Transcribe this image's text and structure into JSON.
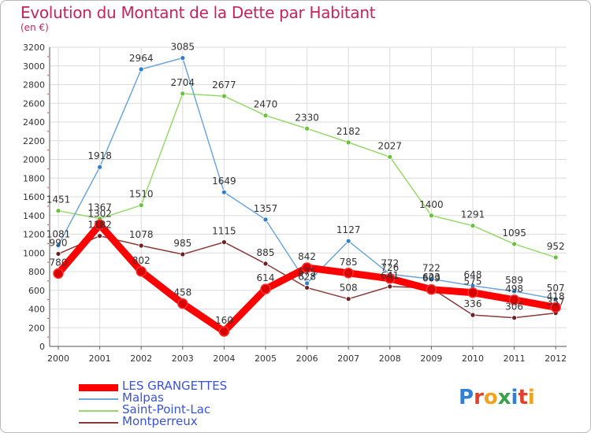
{
  "title": "Evolution du Montant de la Dette par Habitant",
  "subtitle": "(en €)",
  "logo": {
    "text": "Proxiti",
    "letters": [
      {
        "ch": "P",
        "color": "#2f7fd6"
      },
      {
        "ch": "r",
        "color": "#e2402c"
      },
      {
        "ch": "o",
        "color": "#f0a31c"
      },
      {
        "ch": "x",
        "color": "#3aa14a"
      },
      {
        "ch": "i",
        "color": "#2f7fd6"
      },
      {
        "ch": "t",
        "color": "#e2402c"
      },
      {
        "ch": "i",
        "color": "#f0a31c"
      }
    ]
  },
  "chart_data": {
    "type": "line",
    "title": "Evolution du Montant de la Dette par Habitant",
    "ylabel": "(en €)",
    "x": [
      "2000",
      "2001",
      "2002",
      "2003",
      "2004",
      "2005",
      "2006",
      "2007",
      "2008",
      "2009",
      "2010",
      "2011",
      "2012"
    ],
    "ylim": [
      0,
      3200
    ],
    "yticks": [
      0,
      200,
      400,
      600,
      800,
      1000,
      1200,
      1400,
      1600,
      1800,
      2000,
      2200,
      2400,
      2600,
      2800,
      3000,
      3200
    ],
    "grid": true,
    "legend_position": "bottom-left",
    "series": [
      {
        "name": "LES GRANGETTES",
        "color": "#ff0000",
        "point_color": "#d90000",
        "values": [
          780,
          1302,
          802,
          458,
          160,
          614,
          842,
          785,
          726,
          609,
          575,
          498,
          418
        ]
      },
      {
        "name": "Malpas",
        "color": "#6fa6d8",
        "point_color": "#2f80c8",
        "values": [
          1081,
          1918,
          2964,
          3085,
          1649,
          1357,
          675,
          1127,
          772,
          722,
          648,
          589,
          507
        ]
      },
      {
        "name": "Saint-Point-Lac",
        "color": "#97d86b",
        "point_color": "#69c23a",
        "values": [
          1451,
          1367,
          1510,
          2704,
          2677,
          2470,
          2330,
          2182,
          2027,
          1400,
          1291,
          1095,
          952
        ]
      },
      {
        "name": "Montperreux",
        "color": "#8a3a3a",
        "point_color": "#6d2020",
        "values": [
          990,
          1182,
          1078,
          985,
          1115,
          885,
          628,
          508,
          641,
          623,
          336,
          306,
          357
        ]
      }
    ]
  }
}
